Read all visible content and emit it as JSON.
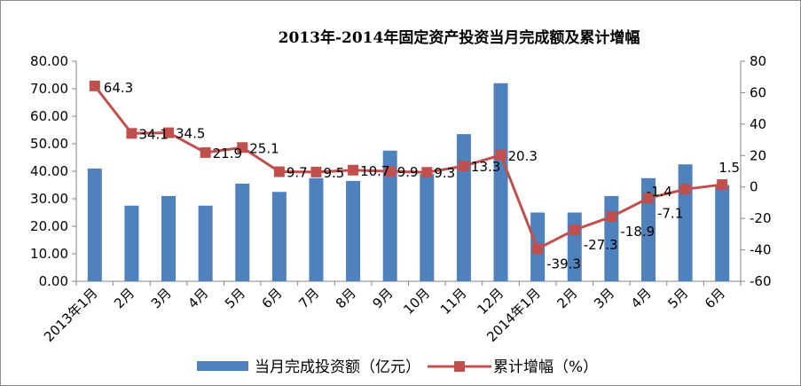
{
  "chart_data": {
    "type": "bar",
    "title": "2013年-2014年固定资产投资当月完成额及累计增幅",
    "categories": [
      "2013年1月",
      "2月",
      "3月",
      "4月",
      "5月",
      "6月",
      "7月",
      "8月",
      "9月",
      "10月",
      "11月",
      "12月",
      "2014年1月",
      "2月",
      "3月",
      "4月",
      "5月",
      "6月"
    ],
    "series": [
      {
        "name": "当月完成投资额（亿元）",
        "type": "bar",
        "axis": "left",
        "color": "#4f81bd",
        "values": [
          41.0,
          27.5,
          31.0,
          27.5,
          35.5,
          32.5,
          37.5,
          36.5,
          47.5,
          39.0,
          53.5,
          72.0,
          25.0,
          25.0,
          31.0,
          37.5,
          42.5,
          35.0
        ]
      },
      {
        "name": "累计增幅（%）",
        "type": "line",
        "axis": "right",
        "color": "#c0504d",
        "values": [
          64.3,
          34.1,
          34.5,
          21.9,
          25.1,
          9.7,
          9.5,
          10.7,
          9.9,
          9.3,
          13.3,
          20.3,
          -39.3,
          -27.3,
          -18.9,
          -7.1,
          -1.4,
          1.5
        ],
        "labels": [
          "64.3",
          "34.1",
          "34.5",
          "21.9",
          "25.1",
          "9.7",
          "9.5",
          "10.7",
          "9.9",
          "9.3",
          "13.3",
          "20.3",
          "-39.3",
          "-27.3",
          "-18.9",
          "-7.1",
          "-1.4",
          "1.5"
        ]
      }
    ],
    "left_axis": {
      "ylim": [
        0,
        80
      ],
      "ticks": [
        "0.00",
        "10.00",
        "20.00",
        "30.00",
        "40.00",
        "50.00",
        "60.00",
        "70.00",
        "80.00"
      ]
    },
    "right_axis": {
      "ylim": [
        -60,
        80
      ],
      "ticks": [
        "-60",
        "-40",
        "-20",
        "0",
        "20",
        "40",
        "60",
        "80"
      ]
    },
    "grid": false,
    "legend": "bottom"
  }
}
